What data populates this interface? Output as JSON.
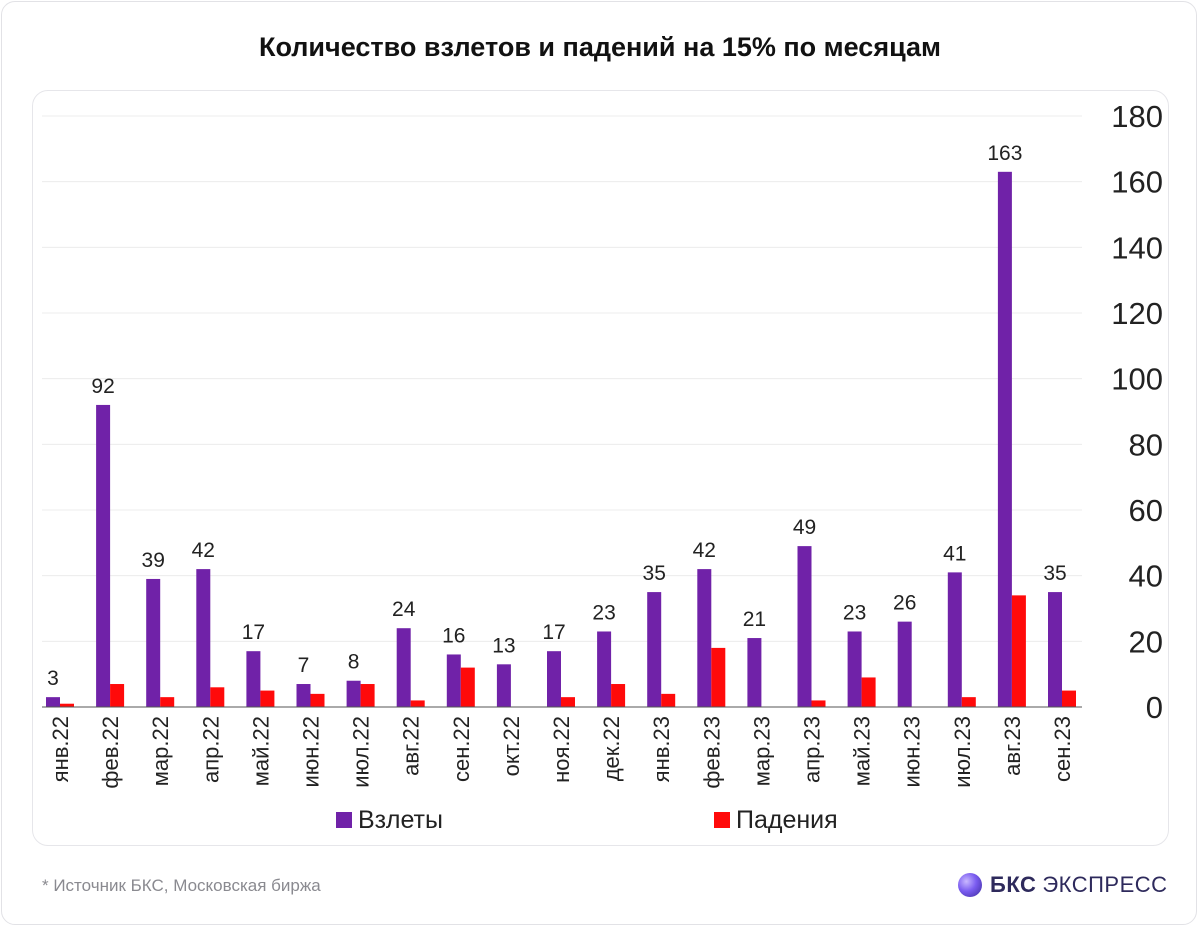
{
  "chart_data": {
    "type": "bar",
    "title": "Количество взлетов и падений на 15% по месяцам",
    "categories": [
      "янв.22",
      "фев.22",
      "мар.22",
      "апр.22",
      "май.22",
      "июн.22",
      "июл.22",
      "авг.22",
      "сен.22",
      "окт.22",
      "ноя.22",
      "дек.22",
      "янв.23",
      "фев.23",
      "мар.23",
      "апр.23",
      "май.23",
      "июн.23",
      "июл.23",
      "авг.23",
      "сен.23"
    ],
    "series": [
      {
        "name": "Взлеты",
        "color": "#7022a8",
        "values": [
          3,
          92,
          39,
          42,
          17,
          7,
          8,
          24,
          16,
          13,
          17,
          23,
          35,
          42,
          21,
          49,
          23,
          26,
          41,
          163,
          35
        ]
      },
      {
        "name": "Падения",
        "color": "#ff0a0a",
        "values": [
          1,
          7,
          3,
          6,
          5,
          4,
          7,
          2,
          12,
          0,
          3,
          7,
          4,
          18,
          0,
          2,
          9,
          0,
          3,
          34,
          5
        ]
      }
    ],
    "data_labels": [
      "3",
      "92",
      "39",
      "42",
      "17",
      "7",
      "8",
      "24",
      "16",
      "13",
      "17",
      "23",
      "35",
      "42",
      "21",
      "49",
      "23",
      "26",
      "41",
      "163",
      "35"
    ],
    "y_ticks": [
      "0",
      "20",
      "40",
      "60",
      "80",
      "100",
      "120",
      "140",
      "160",
      "180"
    ],
    "ylim": [
      0,
      180
    ],
    "y_axis_side": "right",
    "grid": true,
    "legend_position": "bottom"
  },
  "footer": {
    "source": "*  Источник БКС, Московская биржа",
    "brand_bold": "БКС",
    "brand_rest": "ЭКСПРЕСС"
  }
}
